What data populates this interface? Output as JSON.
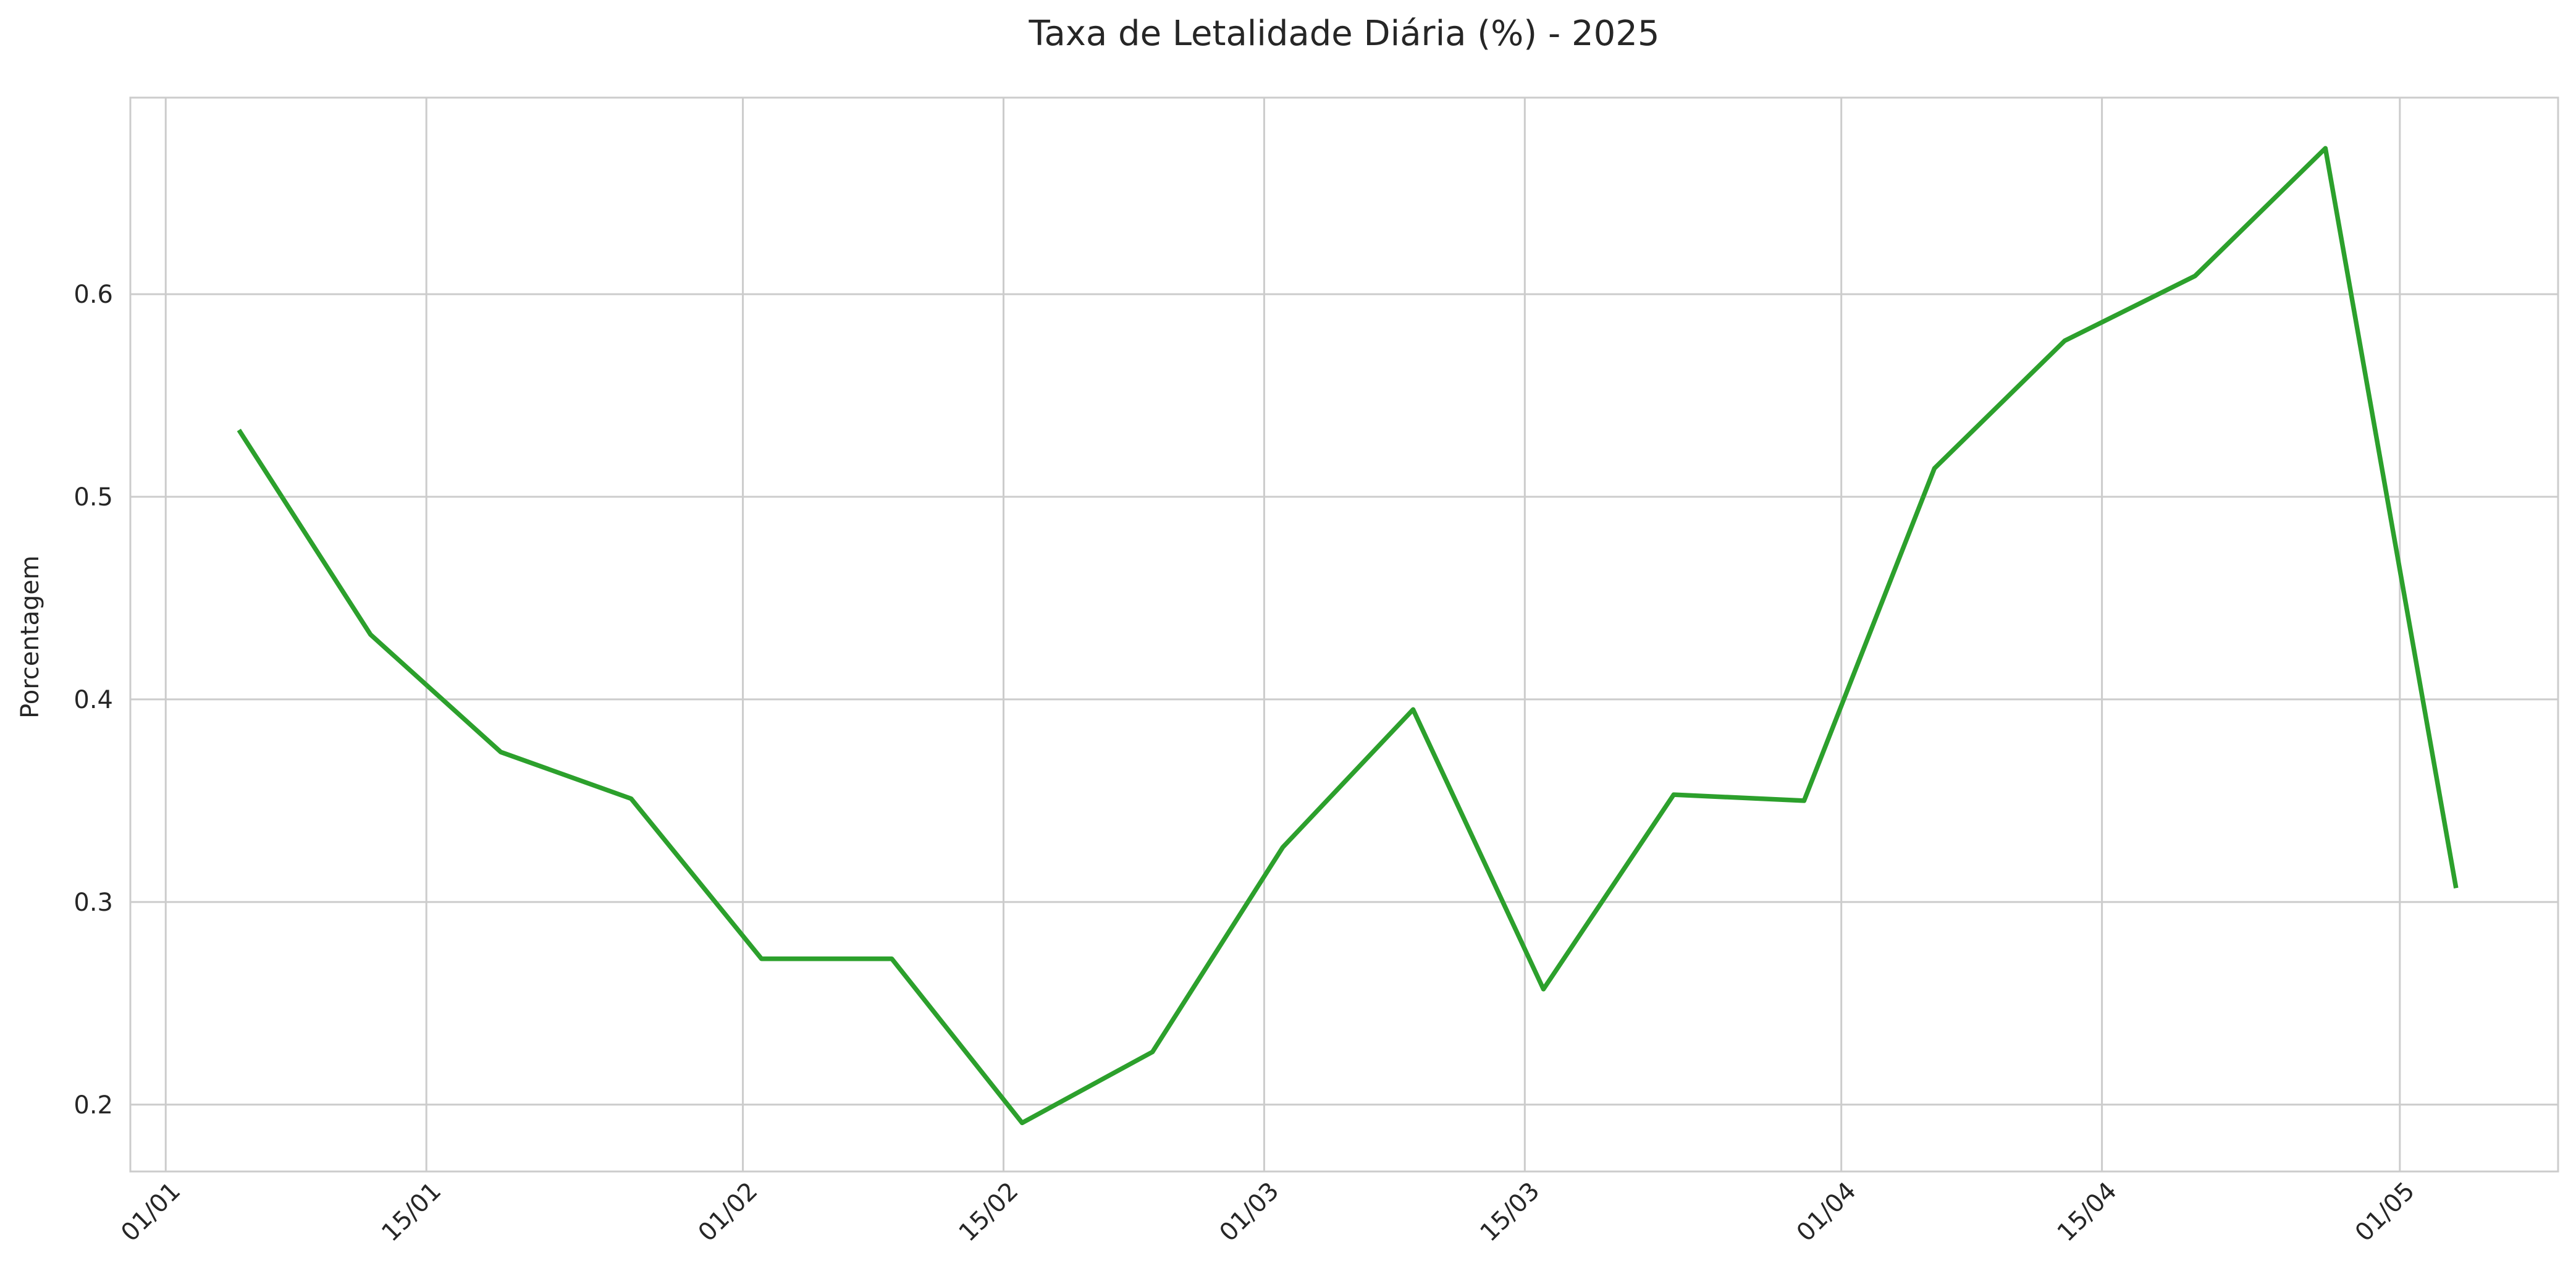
{
  "chart_data": {
    "type": "line",
    "title": "Taxa de Letalidade Diária (%) - 2025",
    "xlabel": "",
    "ylabel": "Porcentagem",
    "grid": true,
    "legend": "none",
    "colors": {
      "series": "#2ca02c",
      "grid": "#cccccc",
      "text": "#262626"
    },
    "x_ticks": [
      {
        "label": "01/01",
        "day": 0
      },
      {
        "label": "15/01",
        "day": 14
      },
      {
        "label": "01/02",
        "day": 31
      },
      {
        "label": "15/02",
        "day": 45
      },
      {
        "label": "01/03",
        "day": 59
      },
      {
        "label": "15/03",
        "day": 73
      },
      {
        "label": "01/04",
        "day": 90
      },
      {
        "label": "15/04",
        "day": 104
      },
      {
        "label": "01/05",
        "day": 120
      }
    ],
    "y_ticks": [
      0.2,
      0.3,
      0.4,
      0.5,
      0.6
    ],
    "xlim": [
      -1.9,
      128.5
    ],
    "ylim": [
      0.167,
      0.697
    ],
    "series": [
      {
        "name": "Taxa de Letalidade Diária",
        "x_days": [
          4,
          11,
          18,
          25,
          32,
          39,
          46,
          53,
          60,
          67,
          74,
          81,
          88,
          95,
          102,
          109,
          116,
          123
        ],
        "values": [
          0.532,
          0.432,
          0.374,
          0.351,
          0.272,
          0.272,
          0.191,
          0.226,
          0.327,
          0.395,
          0.257,
          0.353,
          0.35,
          0.514,
          0.577,
          0.609,
          0.672,
          0.308
        ]
      }
    ]
  }
}
